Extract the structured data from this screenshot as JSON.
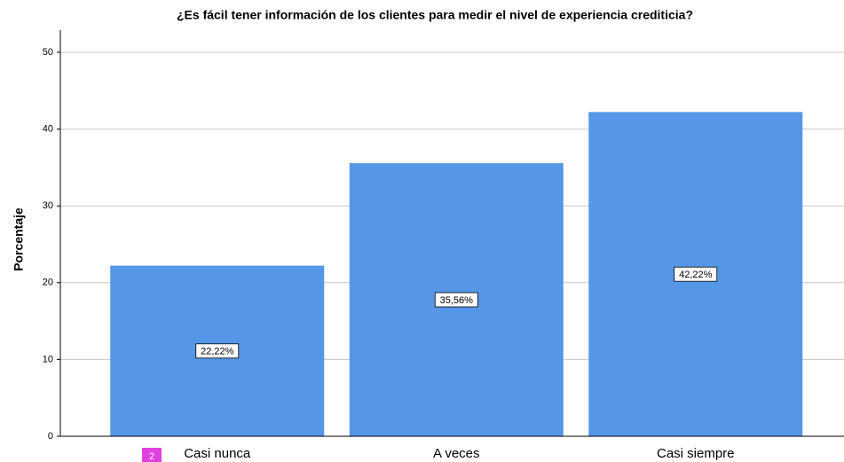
{
  "chart_data": {
    "type": "bar",
    "title": "¿Es fácil tener información de los clientes para medir el nivel de experiencia crediticia?",
    "y_label": "Porcentaje",
    "categories": [
      "Casi nunca",
      "A veces",
      "Casi siempre"
    ],
    "values": [
      22.22,
      35.56,
      42.22
    ],
    "value_labels": [
      "22,22%",
      "35,56%",
      "42,22%"
    ],
    "color": "#5596e6",
    "ylim": [
      0,
      50
    ],
    "yticks": [
      0,
      10,
      20,
      30,
      40,
      50
    ],
    "grid": true
  },
  "badge": "2"
}
